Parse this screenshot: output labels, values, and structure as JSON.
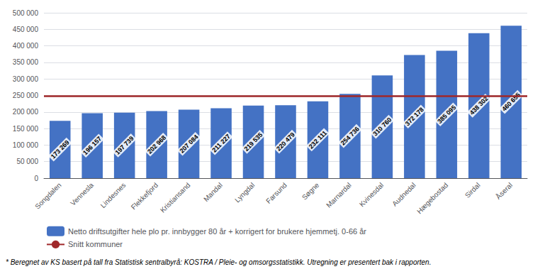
{
  "chart_data": {
    "type": "bar",
    "categories": [
      "Songdalen",
      "Vennesla",
      "Lindesnes",
      "Flekkefjord",
      "Kristiansand",
      "Mandal",
      "Lyngdal",
      "Farsund",
      "Søgne",
      "Marnardal",
      "Kvinesdal",
      "Audnedal",
      "Hægebostad",
      "Sirdal",
      "Åseral"
    ],
    "series": [
      {
        "name": "Netto driftsutgifter hele plo pr. innbygger 80 år + korrigert for brukere hjemmetj. 0-66 år",
        "type": "bar",
        "color": "#4472C4",
        "values": [
          173269,
          196157,
          197739,
          202968,
          207084,
          211227,
          219535,
          220479,
          232111,
          254736,
          310760,
          372178,
          385095,
          438302,
          460655
        ],
        "value_labels": [
          "173 269",
          "196 157",
          "197 739",
          "202 968",
          "207 084",
          "211 227",
          "219 535",
          "220 479",
          "232 111",
          "254 736",
          "310 760",
          "372 178",
          "385 095",
          "438 302",
          "460 655"
        ]
      },
      {
        "name": "Snitt kommuner",
        "type": "hline",
        "color": "#A0282A",
        "value": 248000
      }
    ],
    "ylim": [
      0,
      500000
    ],
    "yticks": [
      0,
      {
        "value": 50000,
        "label": "50 000"
      },
      {
        "value": 100000,
        "label": "100 000"
      },
      {
        "value": 150000,
        "label": "150 000"
      },
      {
        "value": 200000,
        "label": "200 000"
      },
      {
        "value": 250000,
        "label": "250 000"
      },
      {
        "value": 300000,
        "label": "300 000"
      },
      {
        "value": 350000,
        "label": "350 000"
      },
      {
        "value": 400000,
        "label": "400 000"
      },
      {
        "value": 450000,
        "label": "450 000"
      },
      {
        "value": 500000,
        "label": "500 000"
      }
    ],
    "grid": true,
    "data_labels": true,
    "legend": "bottom",
    "annotations": [
      "* Beregnet av KS basert på tall fra Statistisk sentralbyrå: KOSTRA / Pleie- og omsorgsstatistikk. Utregning er presentert bak i rapporten."
    ]
  }
}
